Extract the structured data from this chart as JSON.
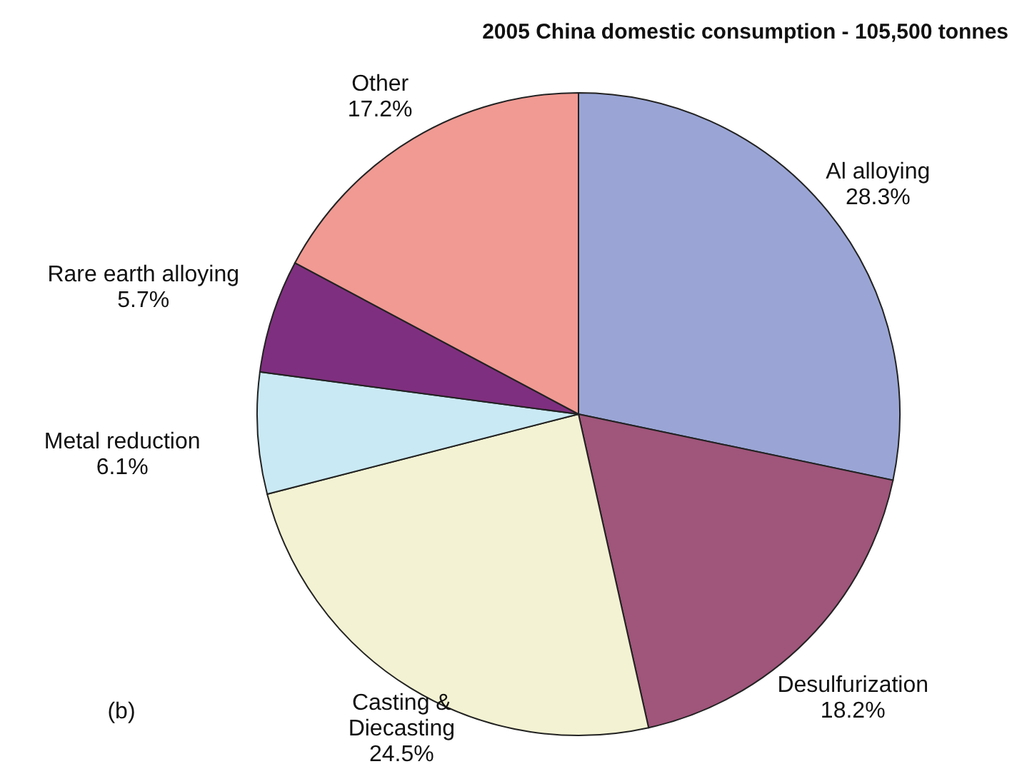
{
  "chart_data": {
    "type": "pie",
    "title": "2005 China domestic consumption - 105,500 tonnes",
    "categories": [
      "Al alloying",
      "Desulfurization",
      "Casting &\nDiecasting",
      "Metal reduction",
      "Rare earth alloying",
      "Other"
    ],
    "values": [
      28.3,
      18.2,
      24.5,
      6.1,
      5.7,
      17.2
    ],
    "value_labels": [
      "28.3%",
      "18.2%",
      "24.5%",
      "6.1%",
      "5.7%",
      "17.2%"
    ],
    "colors": [
      "#9aa5d5",
      "#a0557a",
      "#f3f2d2",
      "#c9e9f4",
      "#7f2f7f",
      "#f09a93"
    ],
    "annotations": [
      "(b)"
    ]
  }
}
